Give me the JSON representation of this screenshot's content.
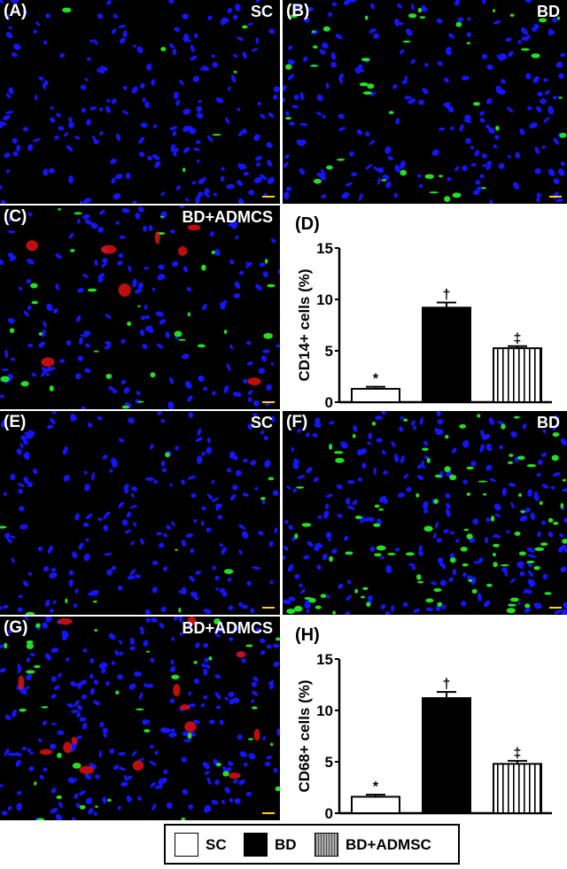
{
  "panels": {
    "A": {
      "letter": "(A)",
      "group": "SC",
      "nuclei": 190,
      "green": 6,
      "red": 0
    },
    "B": {
      "letter": "(B)",
      "group": "BD",
      "nuclei": 190,
      "green": 40,
      "red": 0
    },
    "C": {
      "letter": "(C)",
      "group": "BD+ADMCS",
      "nuclei": 150,
      "green": 30,
      "red": 8
    },
    "E": {
      "letter": "(E)",
      "group": "SC",
      "nuclei": 180,
      "green": 10,
      "red": 0
    },
    "F": {
      "letter": "(F)",
      "group": "BD",
      "nuclei": 230,
      "green": 90,
      "red": 0
    },
    "G": {
      "letter": "(G)",
      "group": "BD+ADMCS",
      "nuclei": 230,
      "green": 35,
      "red": 14
    }
  },
  "colors": {
    "nuclei": "#1414ff",
    "marker": "#22e022",
    "cells": "#e01010",
    "scalebar": "#ffd400"
  },
  "chart_data": [
    {
      "panel": "(D)",
      "type": "bar",
      "ylabel": "CD14+ cells (%)",
      "ylim": [
        0,
        15
      ],
      "yticks": [
        "0",
        "5",
        "10",
        "15"
      ],
      "categories": [
        "SC",
        "BD",
        "BD+ADMSC"
      ],
      "values": [
        1.3,
        9.2,
        5.25
      ],
      "errors": [
        0.2,
        0.5,
        0.2
      ],
      "annotations": [
        "*",
        "†",
        "‡"
      ],
      "fills": [
        "white",
        "black",
        "vertical-stripes"
      ]
    },
    {
      "panel": "(H)",
      "type": "bar",
      "ylabel": "CD68+ cells (%)",
      "ylim": [
        0,
        15
      ],
      "yticks": [
        "0",
        "5",
        "10",
        "15"
      ],
      "categories": [
        "SC",
        "BD",
        "BD+ADMSC"
      ],
      "values": [
        1.6,
        11.2,
        4.8
      ],
      "errors": [
        0.2,
        0.6,
        0.3
      ],
      "annotations": [
        "*",
        "†",
        "‡"
      ],
      "fills": [
        "white",
        "black",
        "vertical-stripes"
      ]
    }
  ],
  "legend": [
    {
      "label": "SC",
      "fill": "white"
    },
    {
      "label": "BD",
      "fill": "black"
    },
    {
      "label": "BD+ADMSC",
      "fill": "vertical-stripes"
    }
  ]
}
